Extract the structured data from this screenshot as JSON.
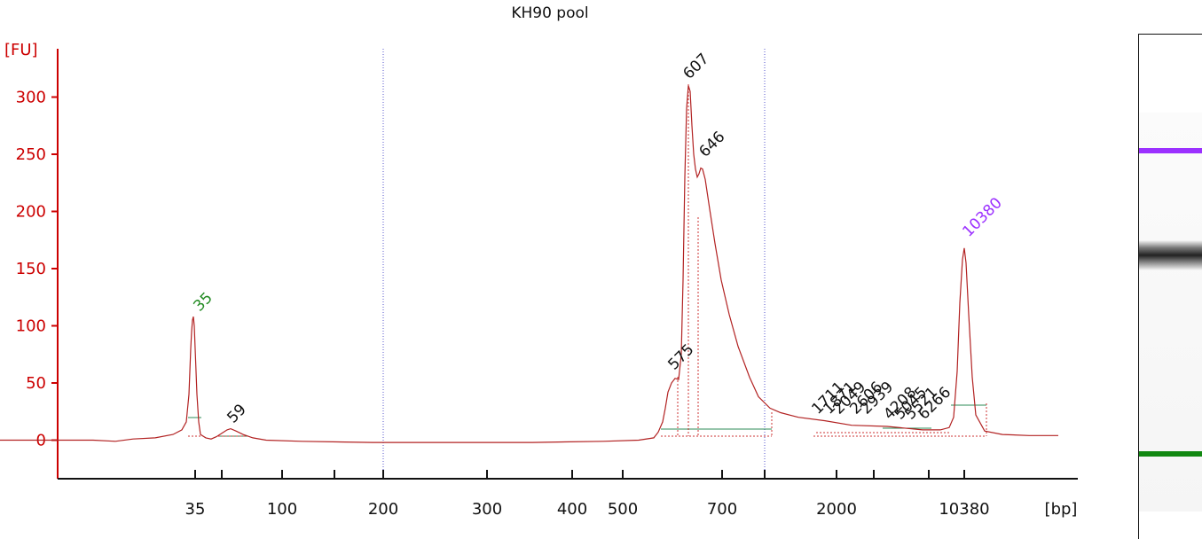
{
  "chart_data": {
    "type": "line",
    "title": "KH90 pool",
    "ylabel": "[FU]",
    "xlabel": "[bp]",
    "ylim": [
      -33,
      345
    ],
    "y_ticks": [
      0,
      50,
      100,
      150,
      200,
      250,
      300
    ],
    "x_tick_labels": [
      "35",
      "100",
      "200",
      "300",
      "400",
      "500",
      "700",
      "2000",
      "10380"
    ],
    "series": [
      {
        "color": "#b22222",
        "points": [
          [
            0,
            0
          ],
          [
            60,
            0
          ],
          [
            105,
            0
          ],
          [
            130,
            -1
          ],
          [
            150,
            1
          ],
          [
            175,
            2
          ],
          [
            195,
            5
          ],
          [
            205,
            9
          ],
          [
            210,
            16
          ],
          [
            213,
            40
          ],
          [
            215,
            80
          ],
          [
            216,
            95
          ],
          [
            217,
            105
          ],
          [
            218,
            108
          ],
          [
            219,
            100
          ],
          [
            220,
            80
          ],
          [
            222,
            40
          ],
          [
            224,
            16
          ],
          [
            226,
            5
          ],
          [
            232,
            2
          ],
          [
            238,
            1
          ],
          [
            244,
            3
          ],
          [
            250,
            6
          ],
          [
            256,
            9
          ],
          [
            260,
            10
          ],
          [
            266,
            8
          ],
          [
            274,
            5
          ],
          [
            285,
            2
          ],
          [
            300,
            0
          ],
          [
            340,
            -1
          ],
          [
            420,
            -2
          ],
          [
            500,
            -2
          ],
          [
            600,
            -2
          ],
          [
            680,
            -1
          ],
          [
            720,
            0
          ],
          [
            737,
            2
          ],
          [
            742,
            7
          ],
          [
            747,
            16
          ],
          [
            750,
            28
          ],
          [
            753,
            42
          ],
          [
            757,
            50
          ],
          [
            761,
            54
          ],
          [
            765,
            53
          ],
          [
            768,
            75
          ],
          [
            770,
            140
          ],
          [
            772,
            230
          ],
          [
            774,
            290
          ],
          [
            776,
            310
          ],
          [
            778,
            305
          ],
          [
            780,
            275
          ],
          [
            782,
            250
          ],
          [
            784,
            237
          ],
          [
            786,
            230
          ],
          [
            788,
            233
          ],
          [
            790,
            238
          ],
          [
            792,
            237
          ],
          [
            795,
            228
          ],
          [
            800,
            202
          ],
          [
            806,
            172
          ],
          [
            813,
            140
          ],
          [
            822,
            110
          ],
          [
            832,
            82
          ],
          [
            845,
            55
          ],
          [
            855,
            38
          ],
          [
            868,
            28
          ],
          [
            880,
            24
          ],
          [
            900,
            20
          ],
          [
            930,
            17
          ],
          [
            960,
            13
          ],
          [
            1000,
            12
          ],
          [
            1040,
            9
          ],
          [
            1060,
            9
          ],
          [
            1070,
            11
          ],
          [
            1075,
            20
          ],
          [
            1079,
            60
          ],
          [
            1082,
            120
          ],
          [
            1085,
            158
          ],
          [
            1087,
            168
          ],
          [
            1089,
            155
          ],
          [
            1092,
            110
          ],
          [
            1096,
            55
          ],
          [
            1100,
            22
          ],
          [
            1110,
            8
          ],
          [
            1130,
            5
          ],
          [
            1160,
            4
          ],
          [
            1193,
            4
          ]
        ]
      }
    ],
    "annotations": [
      {
        "label": "35",
        "color": "#228b22"
      },
      {
        "label": "59",
        "color": "#111111"
      },
      {
        "label": "575",
        "color": "#111111"
      },
      {
        "label": "607",
        "color": "#111111"
      },
      {
        "label": "646",
        "color": "#111111"
      },
      {
        "label": "1711",
        "color": "#111111"
      },
      {
        "label": "1871",
        "color": "#111111"
      },
      {
        "label": "2049",
        "color": "#111111"
      },
      {
        "label": "2606",
        "color": "#111111"
      },
      {
        "label": "2939",
        "color": "#111111"
      },
      {
        "label": "4208",
        "color": "#111111"
      },
      {
        "label": "5045",
        "color": "#111111"
      },
      {
        "label": "5521",
        "color": "#111111"
      },
      {
        "label": "6266",
        "color": "#111111"
      },
      {
        "label": "10380",
        "color": "#9b30ff"
      }
    ],
    "colors": {
      "axis": "#cc0000",
      "trace": "#b22222",
      "marker_lower": "#228b22",
      "marker_upper": "#9b30ff",
      "baseline": "#2e8b57",
      "divider": "#5555cc"
    },
    "grid": false
  },
  "gel": {
    "lanes": 1,
    "bands": [
      {
        "name": "upper-marker-band",
        "color": "#9b30ff"
      },
      {
        "name": "sample-band",
        "color": "#222222"
      },
      {
        "name": "lower-marker-band",
        "color": "#118811"
      }
    ]
  }
}
